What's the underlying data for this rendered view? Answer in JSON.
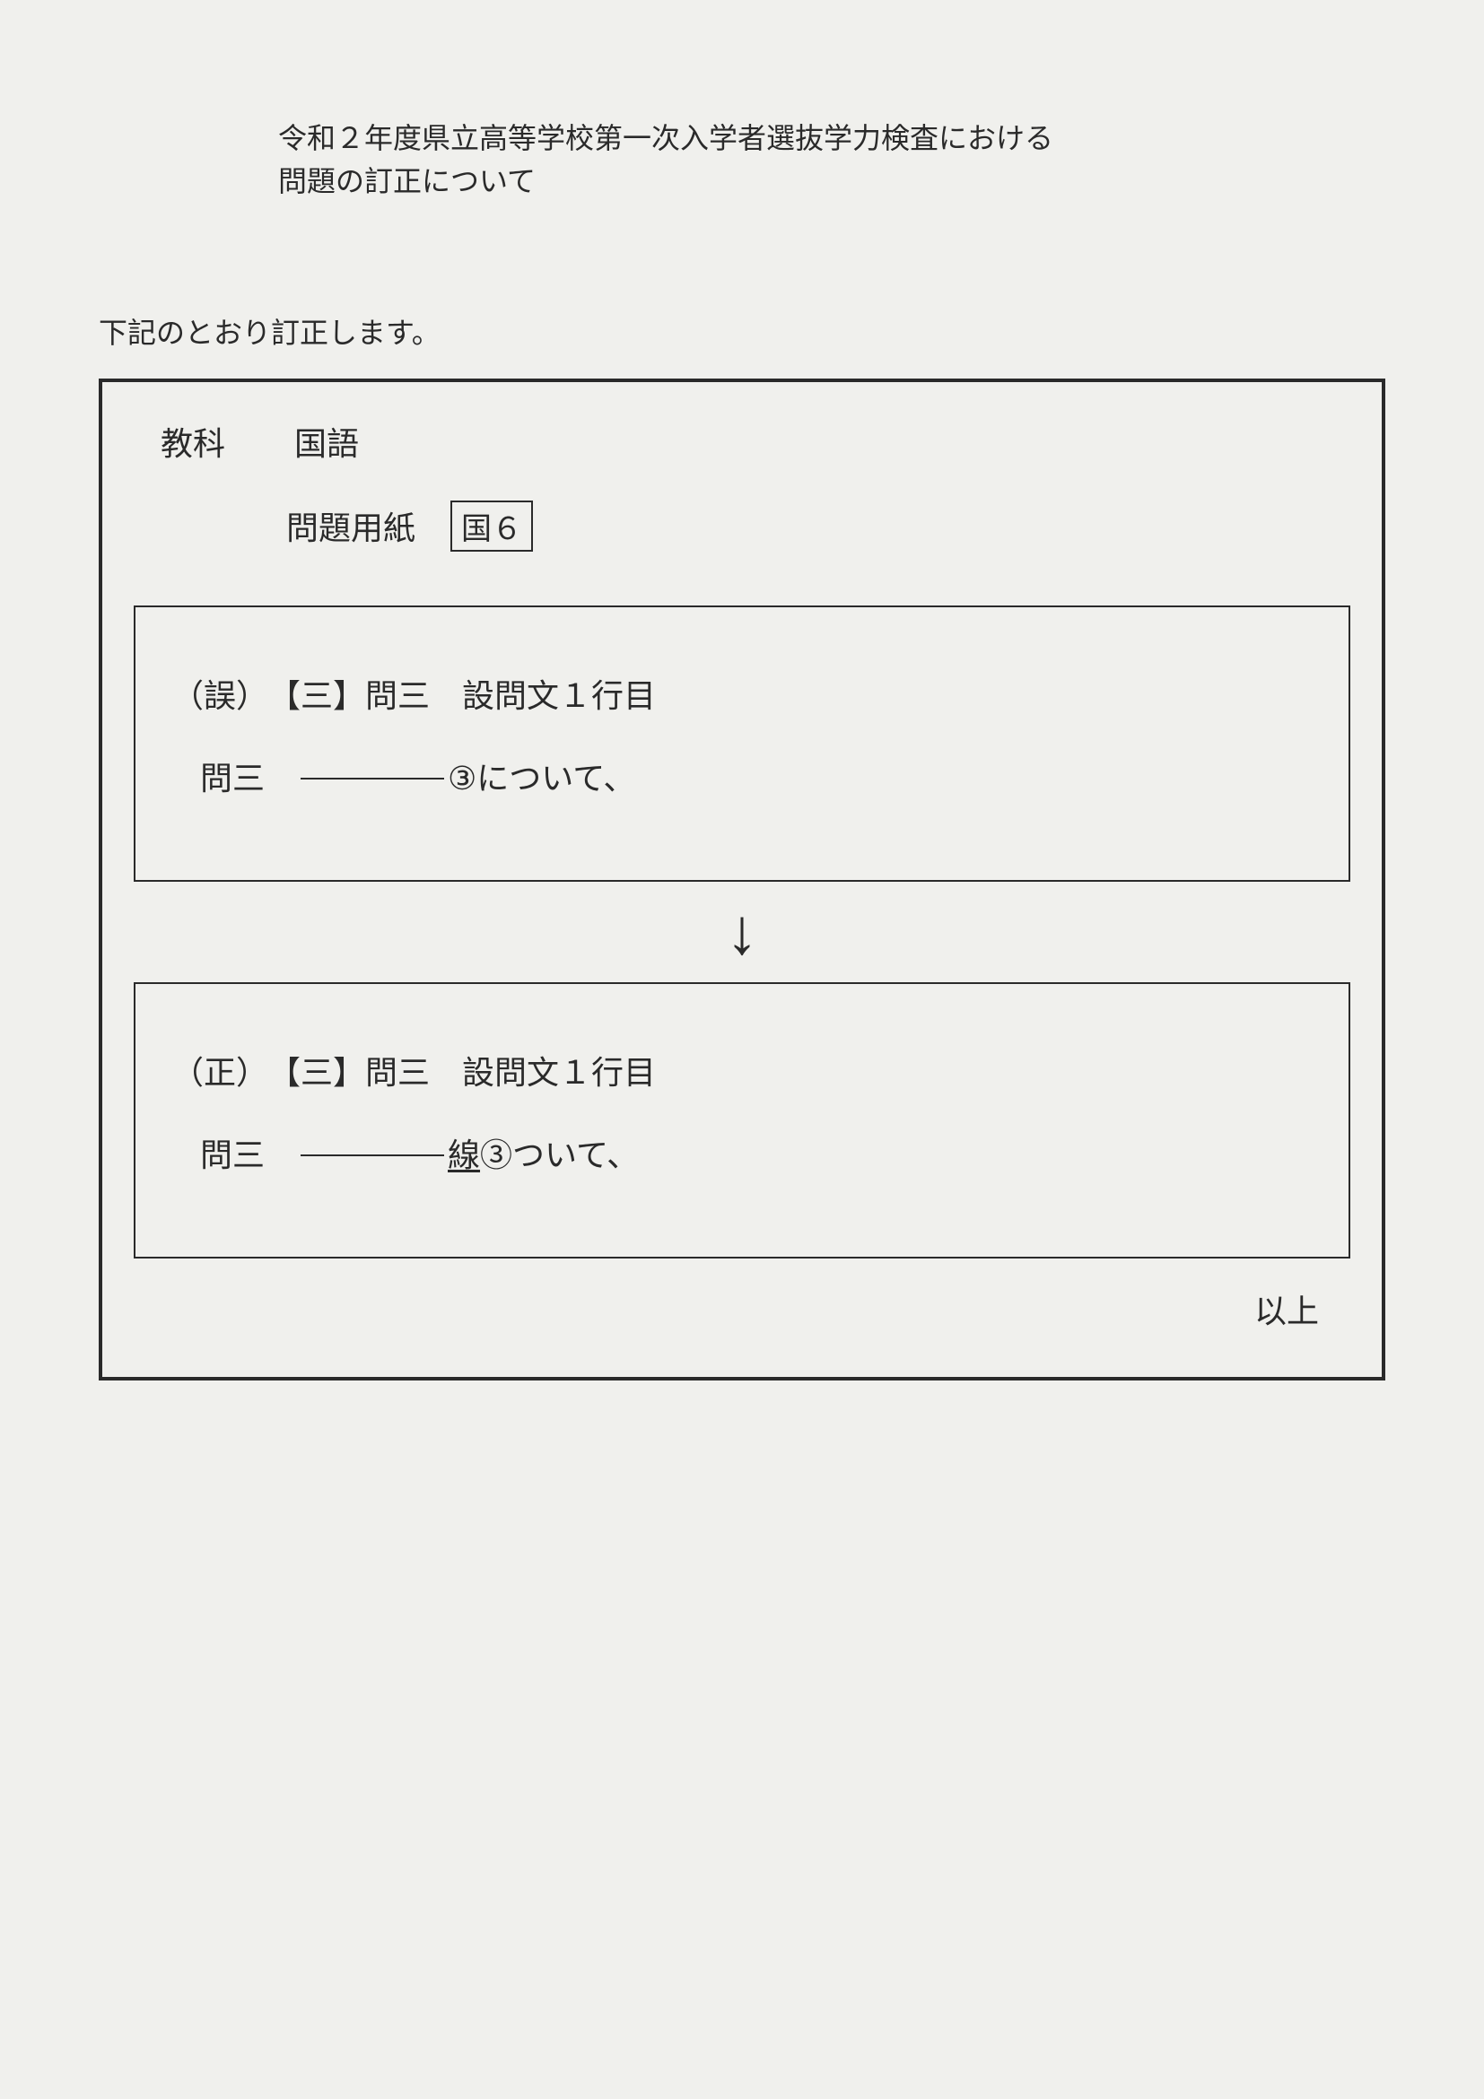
{
  "title": {
    "line1": "令和２年度県立高等学校第一次入学者選抜学力検査における",
    "line2": "問題の訂正について"
  },
  "intro": "下記のとおり訂正します。",
  "header": {
    "subject_label": "教科",
    "subject_value": "国語",
    "paper_label": "問題用紙",
    "paper_code": "国６"
  },
  "incorrect_box": {
    "line1": "（誤）　【三】問三　設問文１行目",
    "line2_prefix": "問三　",
    "line2_suffix": "③について、"
  },
  "arrow": "↓",
  "correct_box": {
    "line1": "（正）　【三】問三　設問文１行目",
    "line2_prefix": "問三　",
    "underlined_char": "線",
    "line2_suffix": "③ついて、"
  },
  "closing": "以上",
  "colors": {
    "background": "#f0f0ed",
    "text": "#2a2a2a",
    "border": "#2a2a2a"
  },
  "typography": {
    "title_fontsize": 32,
    "body_fontsize": 36,
    "arrow_fontsize": 72
  }
}
